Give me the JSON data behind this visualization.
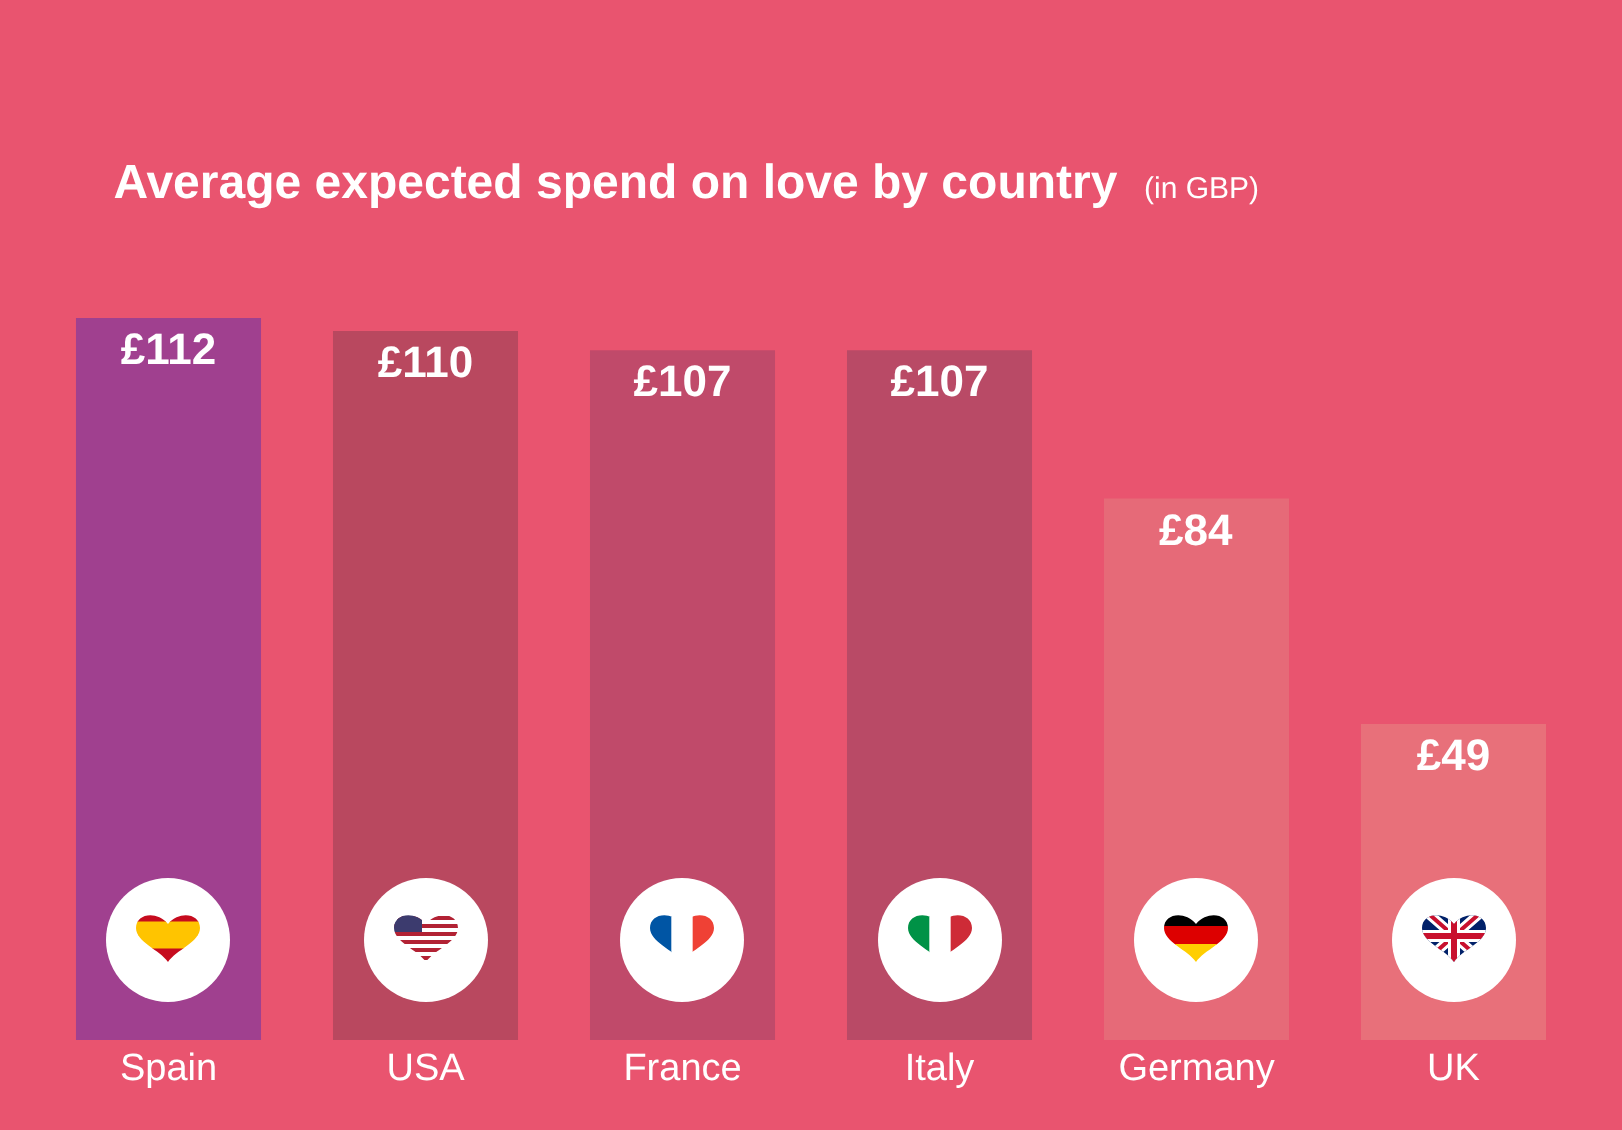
{
  "chart_data": {
    "type": "bar",
    "title": "Average expected spend on love by country",
    "subtitle": "(in GBP)",
    "categories": [
      "Spain",
      "USA",
      "France",
      "Italy",
      "Germany",
      "UK"
    ],
    "values": [
      112,
      110,
      107,
      107,
      84,
      49
    ],
    "value_labels": [
      "£112",
      "£110",
      "£107",
      "£107",
      "£84",
      "£49"
    ],
    "colors": [
      "#a0408f",
      "#b9485f",
      "#c04a6a",
      "#b94a66",
      "#e66a78",
      "#e8707a"
    ],
    "grid": false,
    "legend": false
  }
}
